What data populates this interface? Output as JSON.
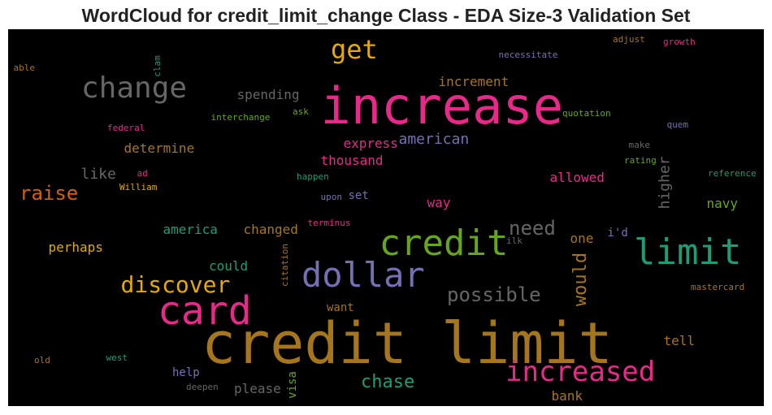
{
  "chart_data": {
    "type": "wordcloud",
    "title": "WordCloud for credit_limit_change Class - EDA Size-3 Validation Set",
    "background": "#000000",
    "words": [
      {
        "text": "credit limit",
        "color": "#a6761d"
      },
      {
        "text": "increase",
        "color": "#e7298a"
      },
      {
        "text": "dollar",
        "color": "#7570b3"
      },
      {
        "text": "card",
        "color": "#e7298a"
      },
      {
        "text": "credit",
        "color": "#66a61e"
      },
      {
        "text": "limit",
        "color": "#1b9e77"
      },
      {
        "text": "change",
        "color": "#666666"
      },
      {
        "text": "increased",
        "color": "#e7298a"
      },
      {
        "text": "discover",
        "color": "#e6ab02"
      },
      {
        "text": "get",
        "color": "#e6ab02"
      },
      {
        "text": "possible",
        "color": "#666666"
      },
      {
        "text": "raise",
        "color": "#d95f02"
      },
      {
        "text": "need",
        "color": "#666666"
      },
      {
        "text": "would",
        "color": "#a6761d"
      },
      {
        "text": "chase",
        "color": "#1b9e77"
      },
      {
        "text": "higher",
        "color": "#666666"
      },
      {
        "text": "american",
        "color": "#7570b3"
      },
      {
        "text": "increment",
        "color": "#a6761d"
      },
      {
        "text": "spending",
        "color": "#666666"
      },
      {
        "text": "like",
        "color": "#666666"
      },
      {
        "text": "determine",
        "color": "#a6761d"
      },
      {
        "text": "express",
        "color": "#e7298a"
      },
      {
        "text": "thousand",
        "color": "#e7298a"
      },
      {
        "text": "allowed",
        "color": "#e7298a"
      },
      {
        "text": "way",
        "color": "#e7298a"
      },
      {
        "text": "america",
        "color": "#1b9e77"
      },
      {
        "text": "changed",
        "color": "#a6761d"
      },
      {
        "text": "perhaps",
        "color": "#e6ab02"
      },
      {
        "text": "could",
        "color": "#1b9e77"
      },
      {
        "text": "one",
        "color": "#a6761d"
      },
      {
        "text": "navy",
        "color": "#66a61e"
      },
      {
        "text": "tell",
        "color": "#a6761d"
      },
      {
        "text": "bank",
        "color": "#a6761d"
      },
      {
        "text": "want",
        "color": "#a6761d"
      },
      {
        "text": "please",
        "color": "#666666"
      },
      {
        "text": "help",
        "color": "#7570b3"
      },
      {
        "text": "visa",
        "color": "#66a61e"
      },
      {
        "text": "i'd",
        "color": "#7570b3"
      },
      {
        "text": "set",
        "color": "#7570b3"
      },
      {
        "text": "adjust",
        "color": "#a6761d"
      },
      {
        "text": "growth",
        "color": "#e7298a"
      },
      {
        "text": "necessitate",
        "color": "#7570b3"
      },
      {
        "text": "able",
        "color": "#a6761d"
      },
      {
        "text": "clam",
        "color": "#1b9e77"
      },
      {
        "text": "ask",
        "color": "#66a61e"
      },
      {
        "text": "interchange",
        "color": "#66a61e"
      },
      {
        "text": "quotation",
        "color": "#66a61e"
      },
      {
        "text": "quem",
        "color": "#7570b3"
      },
      {
        "text": "federal",
        "color": "#e7298a"
      },
      {
        "text": "make",
        "color": "#666666"
      },
      {
        "text": "rating",
        "color": "#66a61e"
      },
      {
        "text": "reference",
        "color": "#1b9e77"
      },
      {
        "text": "ad",
        "color": "#e7298a"
      },
      {
        "text": "William",
        "color": "#e6ab02"
      },
      {
        "text": "happen",
        "color": "#1b9e77"
      },
      {
        "text": "upon",
        "color": "#7570b3"
      },
      {
        "text": "terminus",
        "color": "#e7298a"
      },
      {
        "text": "citation",
        "color": "#a6761d"
      },
      {
        "text": "ilk",
        "color": "#666666"
      },
      {
        "text": "mastercard",
        "color": "#a6761d"
      },
      {
        "text": "old",
        "color": "#a6761d"
      },
      {
        "text": "west",
        "color": "#1b9e77"
      },
      {
        "text": "deepen",
        "color": "#666666"
      }
    ]
  }
}
